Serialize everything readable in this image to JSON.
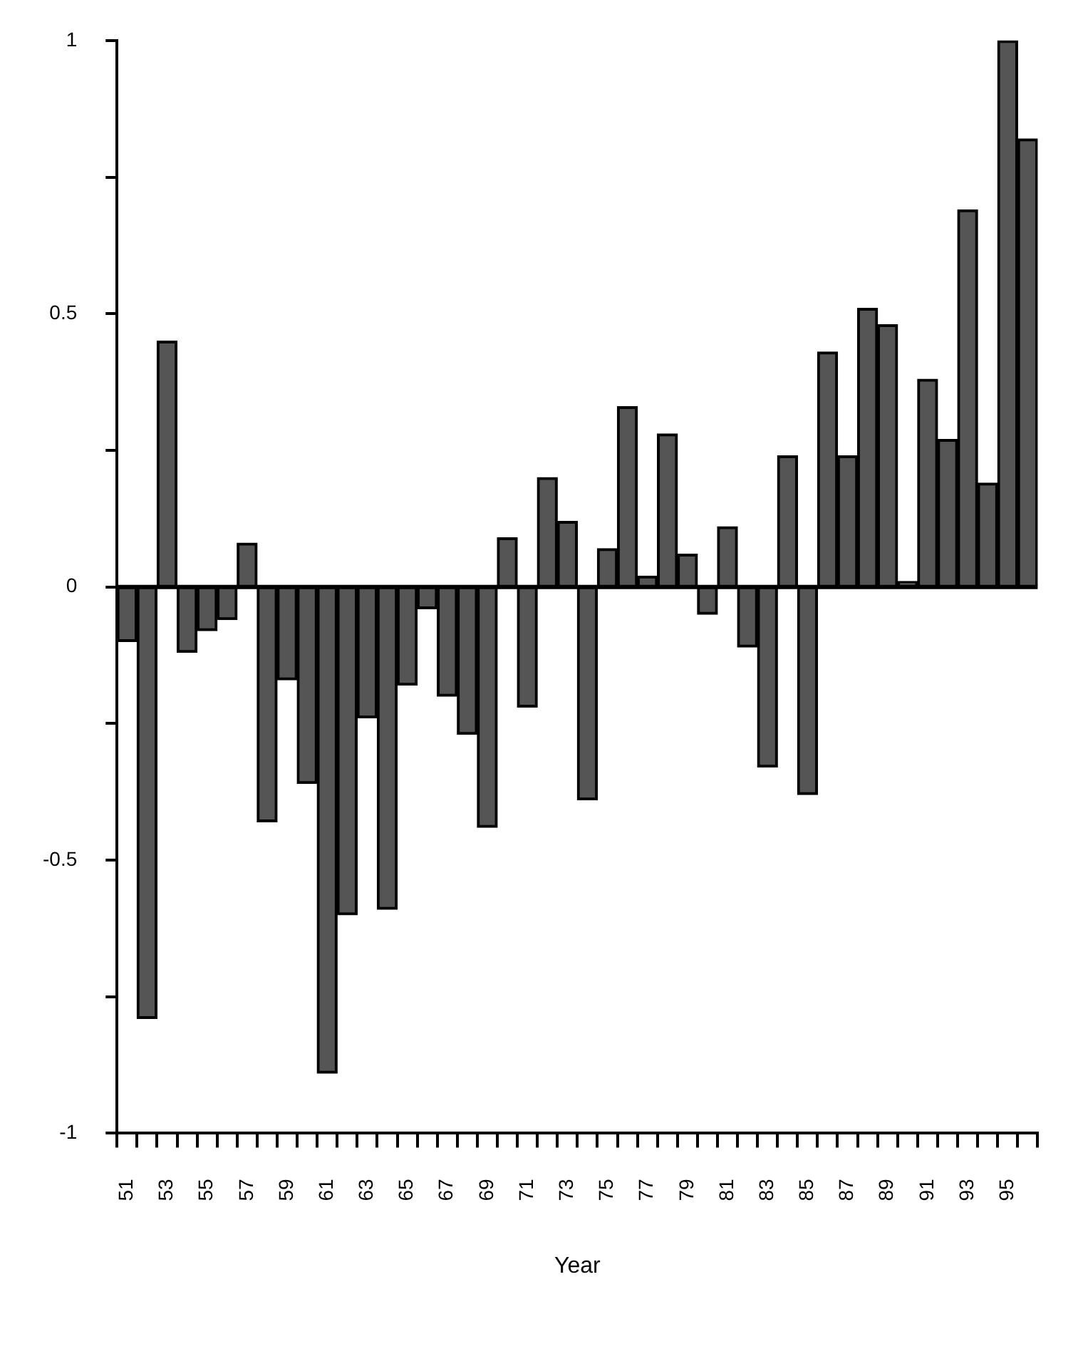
{
  "chart_data": {
    "type": "bar",
    "xlabel": "Year",
    "categories": [
      "51",
      null,
      "53",
      null,
      "55",
      null,
      "57",
      null,
      "59",
      null,
      "61",
      null,
      "63",
      null,
      "65",
      null,
      "67",
      null,
      "69",
      null,
      "71",
      null,
      "73",
      null,
      "75",
      null,
      "77",
      null,
      "79",
      null,
      "81",
      null,
      "83",
      null,
      "85",
      null,
      "87",
      null,
      "89",
      null,
      "91",
      null,
      "93",
      null,
      "95",
      null
    ],
    "values": [
      -0.1,
      -0.79,
      0.45,
      -0.12,
      -0.08,
      -0.06,
      0.08,
      -0.43,
      -0.17,
      -0.36,
      -0.89,
      -0.6,
      -0.24,
      -0.59,
      -0.18,
      -0.04,
      -0.2,
      -0.27,
      -0.44,
      0.09,
      -0.22,
      0.2,
      0.12,
      -0.39,
      0.07,
      0.33,
      0.02,
      0.28,
      0.06,
      -0.05,
      0.11,
      -0.11,
      -0.33,
      0.24,
      -0.38,
      0.43,
      0.24,
      0.51,
      0.48,
      0.01,
      0.38,
      0.27,
      0.69,
      0.19,
      1.0,
      0.82
    ],
    "color": "#555555",
    "ylim": [
      -1,
      1
    ],
    "yticks": [
      -1,
      {
        "value": -0.75,
        "label": null
      },
      -0.5,
      {
        "value": -0.25,
        "label": null
      },
      0,
      {
        "value": 0.25,
        "label": null
      },
      0.5,
      {
        "value": 0.75,
        "label": null
      },
      1
    ],
    "ref_lines": [
      {
        "axis": "y",
        "value": 0,
        "color": "#000000"
      }
    ],
    "grid": false,
    "legend": false
  }
}
